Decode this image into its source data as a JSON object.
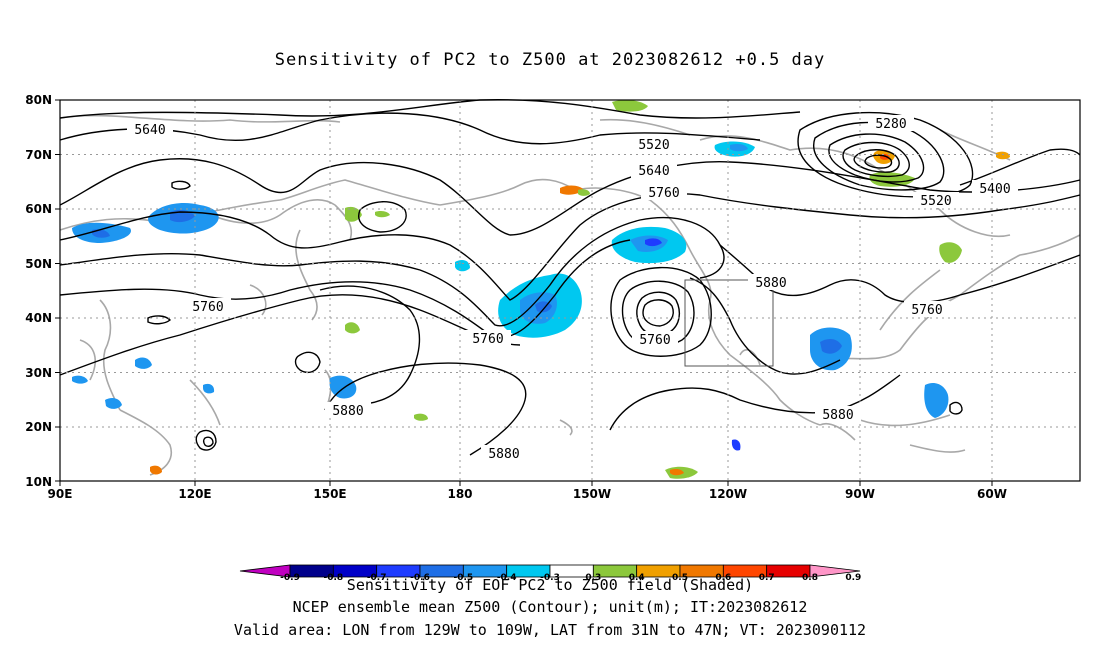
{
  "title": "Sensitivity of PC2 to Z500 at 2023082612 +0.5 day",
  "map": {
    "lat_labels": [
      "80N",
      "70N",
      "60N",
      "50N",
      "40N",
      "30N",
      "20N",
      "10N"
    ],
    "lon_labels": [
      "90E",
      "120E",
      "150E",
      "180",
      "150W",
      "120W",
      "90W",
      "60W"
    ],
    "contour_labels": [
      "5640",
      "5520",
      "5640",
      "5760",
      "5280",
      "5400",
      "5520",
      "5760",
      "5760",
      "5760",
      "5880",
      "5760",
      "5880",
      "5880",
      "5880"
    ],
    "valid_box": {
      "lon_from": "129W",
      "lon_to": "109W",
      "lat_from": "31N",
      "lat_to": "47N"
    }
  },
  "colorbar": {
    "labels": [
      "-0.9",
      "-0.8",
      "-0.7",
      "-0.6",
      "-0.5",
      "-0.4",
      "-0.3",
      "0.3",
      "0.4",
      "0.5",
      "0.6",
      "0.7",
      "0.8",
      "0.9"
    ],
    "colors": [
      "#c000c0",
      "#00008b",
      "#0000c8",
      "#1e3cff",
      "#1e6ee6",
      "#1e96f0",
      "#00c8f0",
      "#ffffff",
      "#8cc83c",
      "#f0a000",
      "#f07800",
      "#ff4600",
      "#e60000",
      "#ff96c8"
    ]
  },
  "captions": [
    "Sensitivity of EOF PC2 to Z500 field (Shaded)",
    "NCEP ensemble mean Z500 (Contour); unit(m); IT:2023082612",
    "Valid area: LON from 129W to 109W, LAT from 31N to 47N; VT: 2023090112"
  ]
}
